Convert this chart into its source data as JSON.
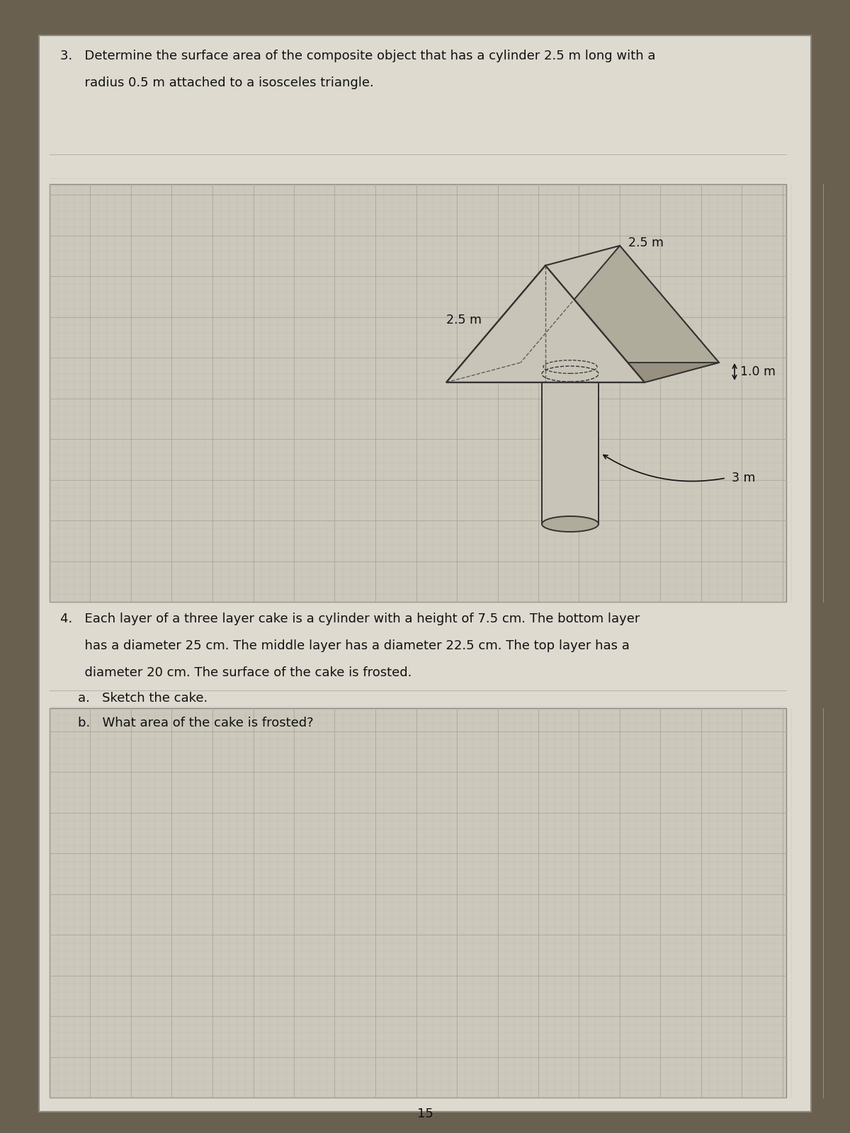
{
  "bg_outer": "#6a6050",
  "bg_paper": "#dedad0",
  "grid_fill": "#ccc8bc",
  "grid_minor": "#b8b4a8",
  "grid_major": "#a8a498",
  "text_color": "#111111",
  "shape_fill_light": "#c8c4b8",
  "shape_fill_mid": "#b0ac9c",
  "shape_fill_dark": "#989080",
  "shape_edge": "#333330",
  "q3_line1": "3.   Determine the surface area of the composite object that has a cylinder 2.5 m long with a",
  "q3_line2": "      radius 0.5 m attached to a isosceles triangle.",
  "q4_line1": "4.   Each layer of a three layer cake is a cylinder with a height of 7.5 cm. The bottom layer",
  "q4_line2": "      has a diameter 25 cm. The middle layer has a diameter 22.5 cm. The top layer has a",
  "q4_line3": "      diameter 20 cm. The surface of the cake is frosted.",
  "q4a_text": "a.   Sketch the cake.",
  "q4b_text": "b.   What area of the cake is frosted?",
  "page_num": "15",
  "label_25m_left": "2.5 m",
  "label_25m_top": "2.5 m",
  "label_3m": "3 m",
  "label_1m": "1.0 m"
}
